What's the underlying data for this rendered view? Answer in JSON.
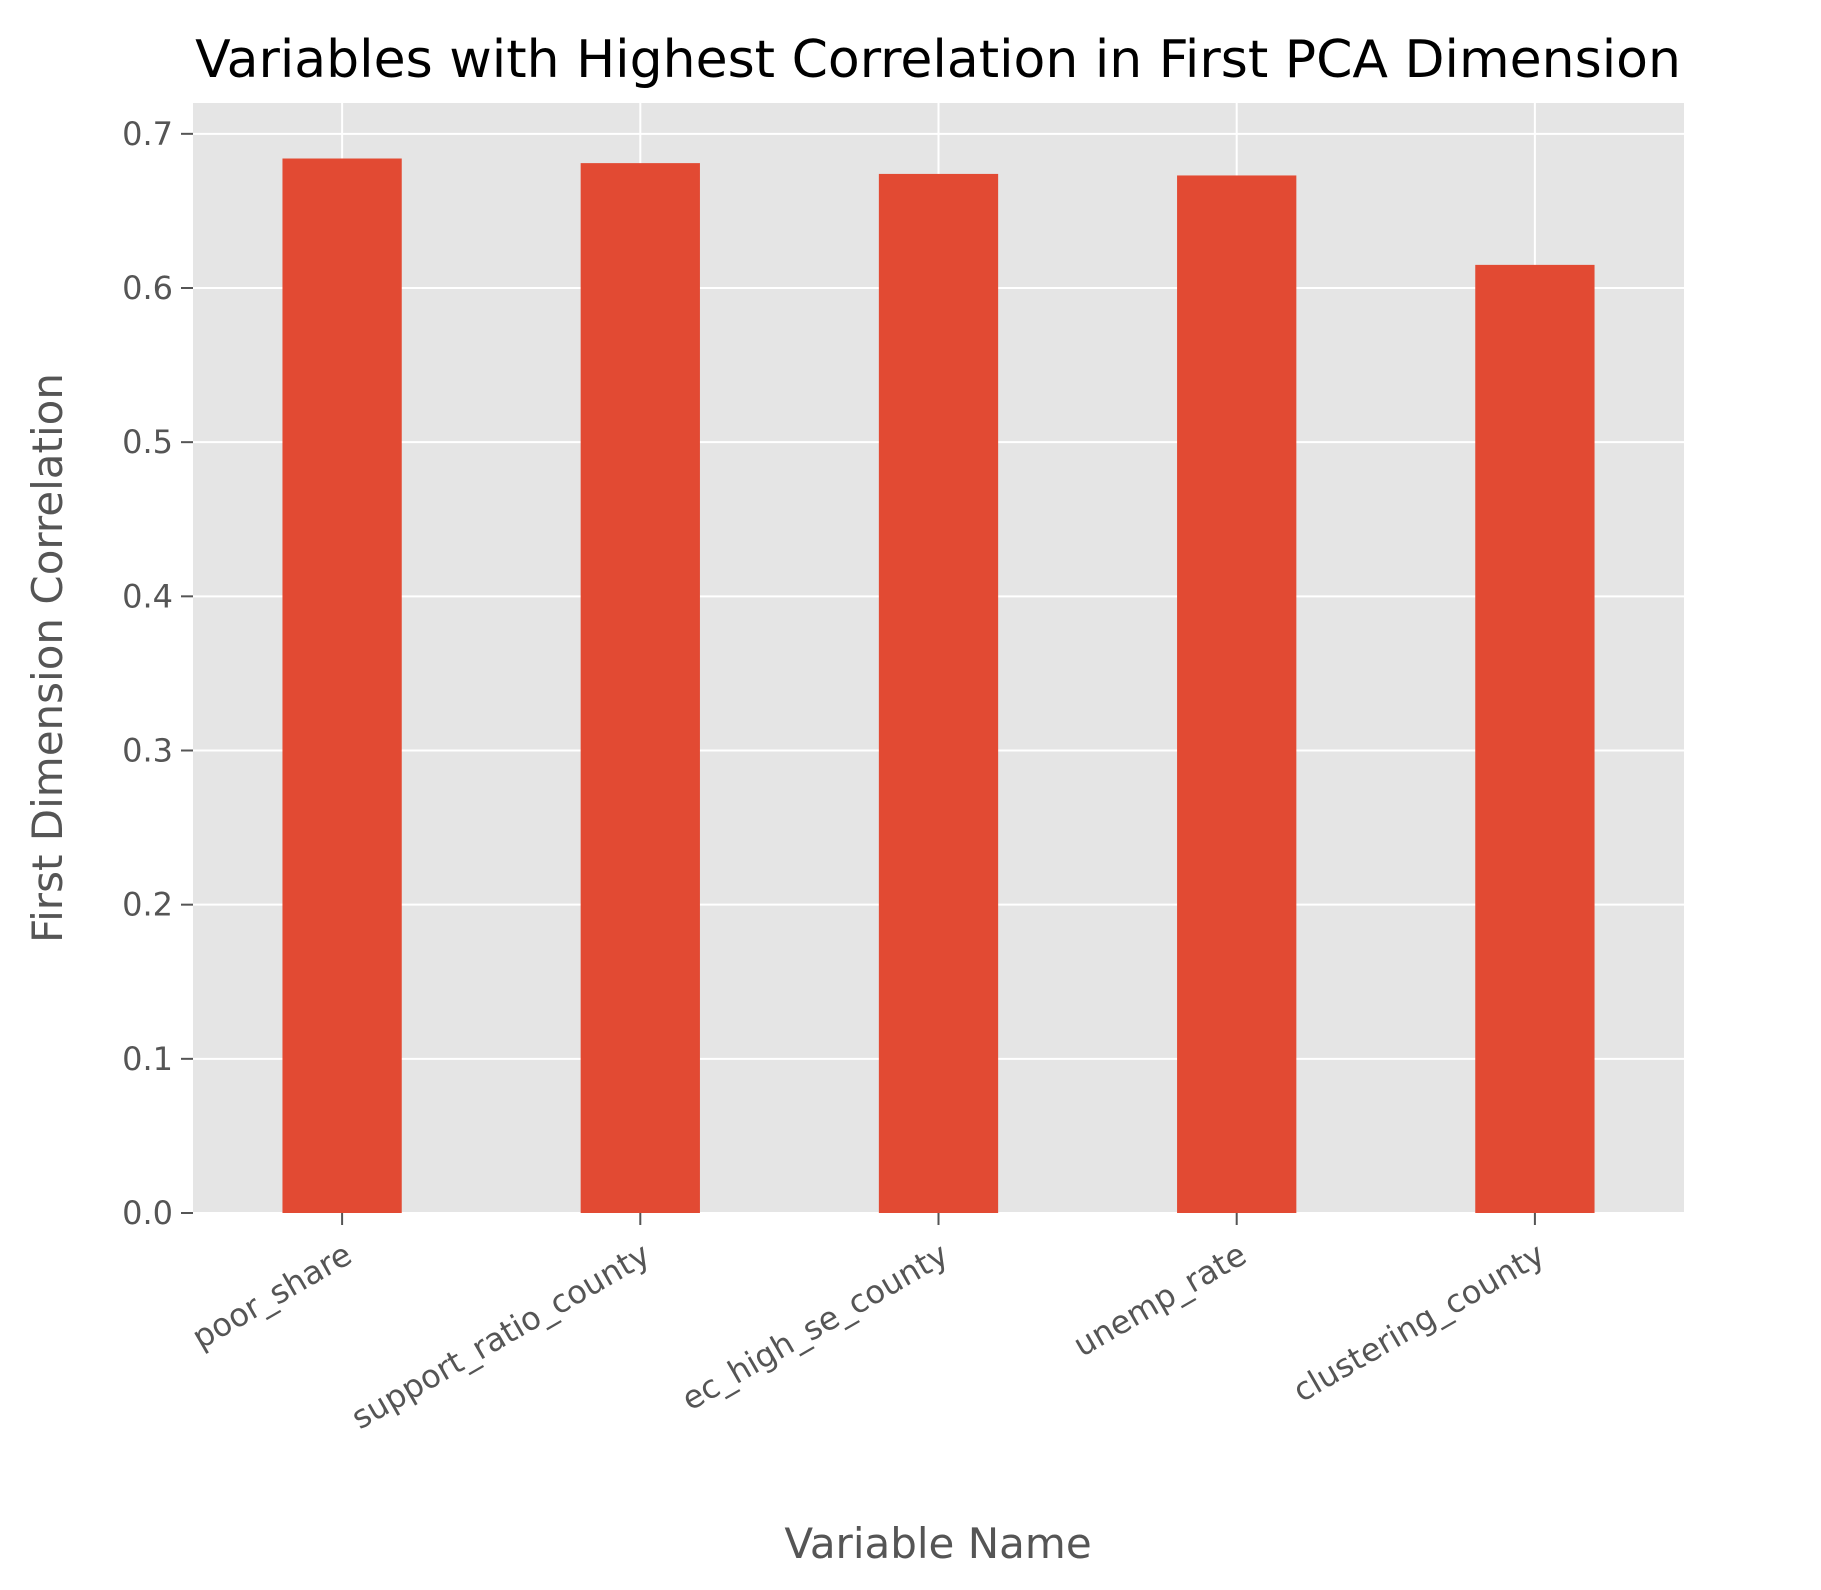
{
  "chart_data": {
    "type": "bar",
    "title": "Variables with Highest Correlation in First PCA Dimension",
    "xlabel": "Variable Name",
    "ylabel": "First Dimension Correlation",
    "categories": [
      "poor_share",
      "support_ratio_county",
      "ec_high_se_county",
      "unemp_rate",
      "clustering_county"
    ],
    "values": [
      0.684,
      0.681,
      0.674,
      0.673,
      0.615
    ],
    "ylim": [
      0,
      0.72
    ],
    "yticks": [
      "0.0",
      "0.1",
      "0.2",
      "0.3",
      "0.4",
      "0.5",
      "0.6",
      "0.7"
    ],
    "grid": true,
    "colors": {
      "bar": "#E24A33",
      "plot_bg": "#E5E5E5",
      "grid": "#FFFFFF",
      "text": "#555555",
      "title": "#000000"
    }
  }
}
